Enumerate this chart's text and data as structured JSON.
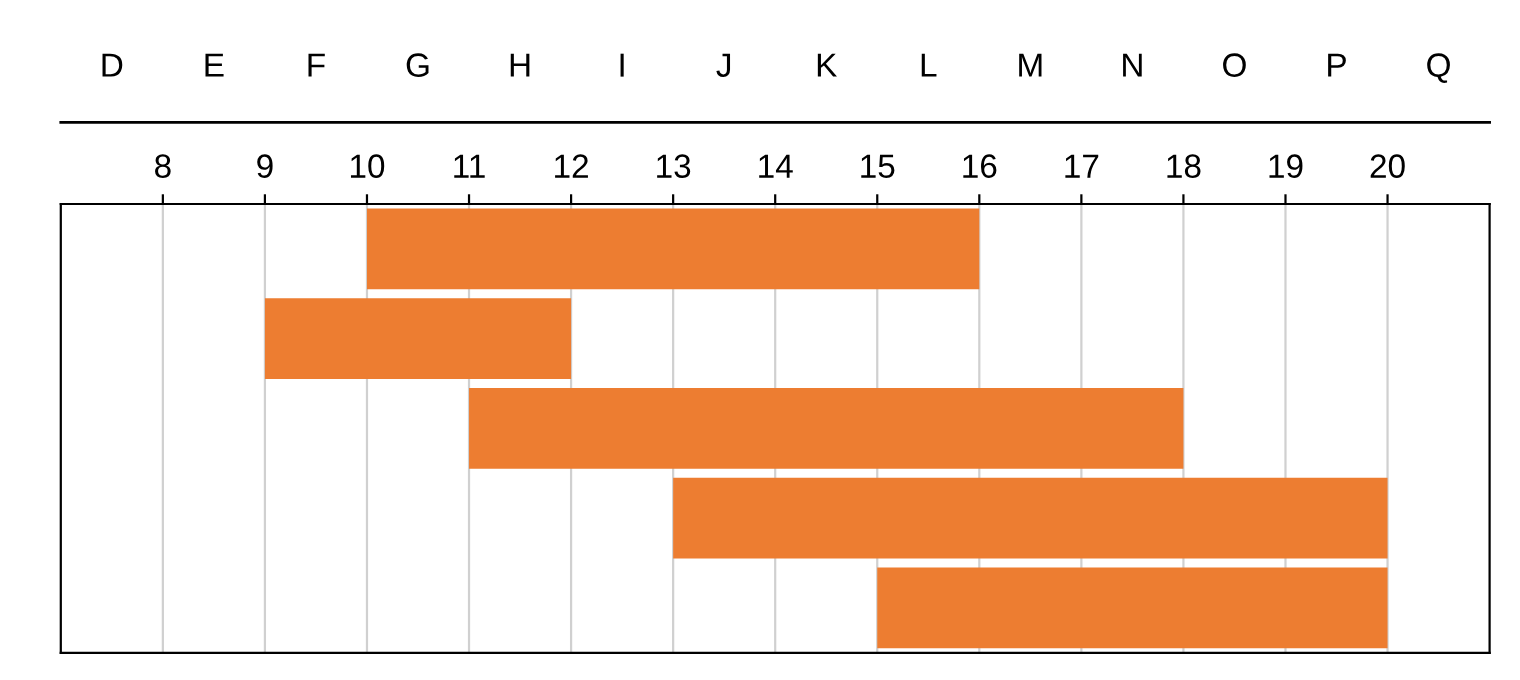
{
  "chart_data": {
    "type": "bar",
    "orientation": "horizontal",
    "categories": [
      null,
      null,
      null,
      null,
      null
    ],
    "base": [
      10,
      9,
      11,
      13,
      15
    ],
    "values": [
      6,
      3,
      7,
      7,
      5
    ],
    "color": "#ed7d31",
    "xlim": [
      7,
      21
    ],
    "xticks": [
      8,
      9,
      10,
      11,
      12,
      13,
      14,
      15,
      16,
      17,
      18,
      19,
      20
    ],
    "annotations": [
      "D",
      "E",
      "F",
      "G",
      "H",
      "I",
      "J",
      "K",
      "L",
      "M",
      "N",
      "O",
      "P",
      "Q"
    ],
    "grid": true,
    "tick_labels": "x"
  }
}
